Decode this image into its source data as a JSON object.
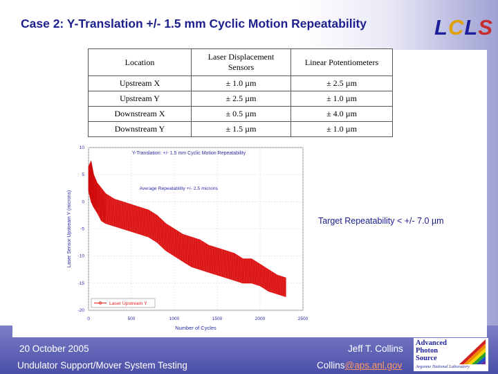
{
  "slide": {
    "title": "Case 2: Y-Translation +/- 1.5 mm Cyclic Motion Repeatability",
    "logo": {
      "l1": "L",
      "c": "C",
      "l2": "L",
      "s": "S"
    },
    "target_note": "Target Repeatability < +/- 7.0 µm"
  },
  "table": {
    "headers": [
      "Location",
      "Laser Displacement Sensors",
      "Linear Potentiometers"
    ],
    "rows": [
      [
        "Upstream X",
        "± 1.0 µm",
        "± 2.5 µm"
      ],
      [
        "Upstream Y",
        "± 2.5 µm",
        "± 1.0 µm"
      ],
      [
        "Downstream X",
        "± 0.5 µm",
        "± 4.0 µm"
      ],
      [
        "Downstream Y",
        "± 1.5 µm",
        "± 1.0 µm"
      ]
    ]
  },
  "chart_data": {
    "type": "line",
    "title": "Y-Translation: +/- 1.5 mm Cyclic Motion Repeatability",
    "annotation": "Average Repeatability +/- 2.5 microns",
    "xlabel": "Number of Cycles",
    "ylabel": "Laser Sensor Upstream Y (microns)",
    "xlim": [
      0,
      2500
    ],
    "ylim": [
      -20,
      10
    ],
    "xticks": [
      "0",
      "500",
      "1000",
      "1500",
      "2000",
      "2500"
    ],
    "yticks": [
      "10",
      "5",
      "0",
      "-5",
      "-10",
      "-15",
      "-20"
    ],
    "legend": "Laser Upstream Y",
    "legend_position": "bottom-left",
    "colors": {
      "series": "#e41a1a",
      "axis_text": "#2a2aa8",
      "grid": "#d8d8d8"
    },
    "series": [
      {
        "name": "Laser Upstream Y",
        "x": [
          0,
          30,
          60,
          100,
          150,
          200,
          300,
          400,
          500,
          600,
          700,
          800,
          900,
          1000,
          1100,
          1200,
          1300,
          1400,
          1500,
          1600,
          1700,
          1800,
          1900,
          2000,
          2100,
          2200,
          2300
        ],
        "y_upper": [
          6.5,
          7.5,
          5.0,
          3.5,
          2.5,
          1.5,
          0.5,
          0.0,
          -0.5,
          -1.0,
          -1.5,
          -2.5,
          -4.0,
          -5.0,
          -6.0,
          -6.5,
          -7.0,
          -8.0,
          -8.5,
          -9.0,
          -9.5,
          -10.5,
          -10.5,
          -11.5,
          -12.5,
          -13.5,
          -14.0
        ],
        "y_lower": [
          2.0,
          0.0,
          -1.0,
          -2.0,
          -3.5,
          -4.0,
          -4.5,
          -5.0,
          -5.5,
          -6.0,
          -6.5,
          -7.5,
          -9.0,
          -10.0,
          -11.0,
          -12.0,
          -12.5,
          -13.0,
          -13.5,
          -14.0,
          -14.5,
          -15.0,
          -15.0,
          -15.5,
          -16.5,
          -17.0,
          -17.5
        ]
      }
    ]
  },
  "footer": {
    "date": "20 October 2005",
    "author": "Jeff T. Collins",
    "project": "Undulator Support/Mover System Testing",
    "email_prefix": "Collins",
    "email_domain": "@aps.anl.gov",
    "aps_logo": [
      "Advanced",
      "Photon",
      "Source"
    ],
    "aps_sub": "Argonne National Laboratory"
  }
}
